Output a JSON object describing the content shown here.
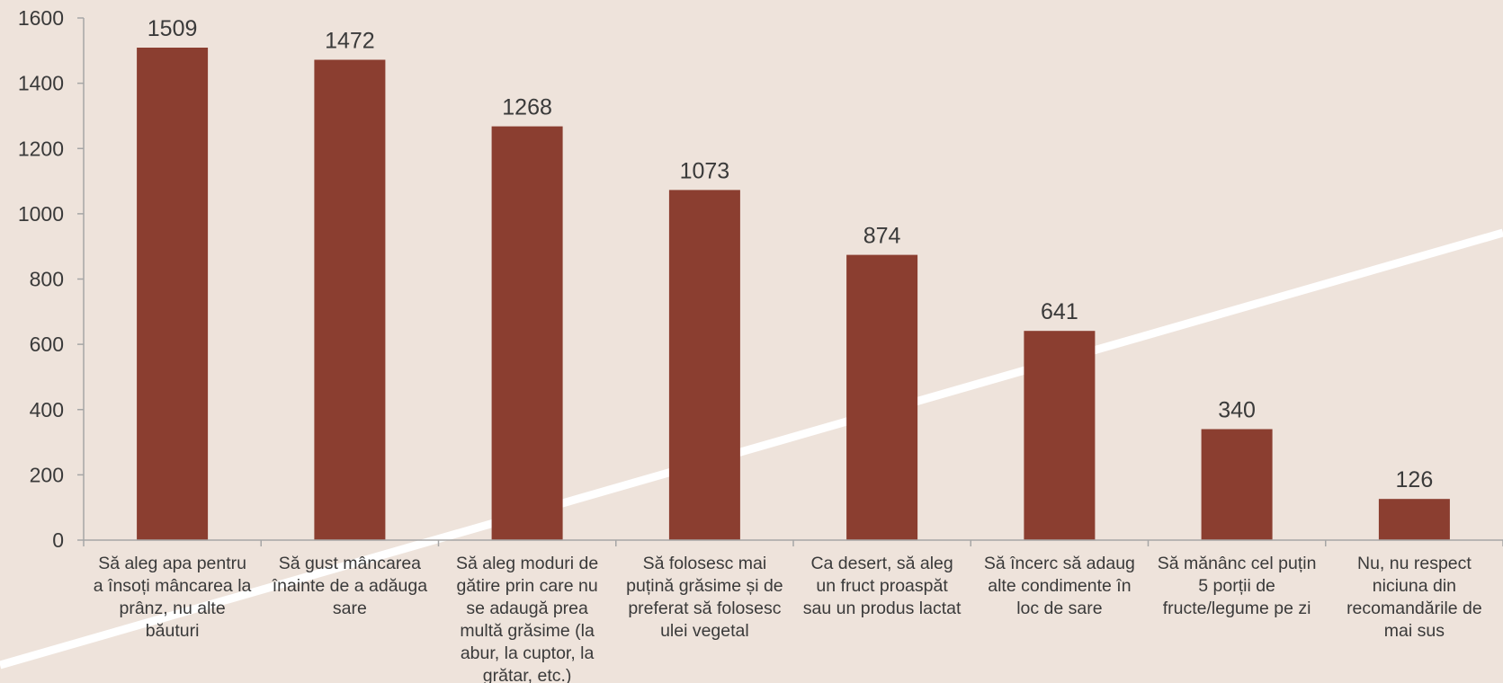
{
  "chart_data": {
    "type": "bar",
    "categories": [
      [
        "Să aleg apa pentru",
        "a însoți mâncarea la",
        "prânz, nu alte",
        "băuturi"
      ],
      [
        "Să gust mâncarea",
        "înainte de a adăuga",
        "sare"
      ],
      [
        "Să aleg moduri de",
        "gătire prin care nu",
        "se adaugă prea",
        "multă grăsime (la",
        "abur, la cuptor, la",
        "grătar, etc.)"
      ],
      [
        "Să folosesc mai",
        "puțină grăsime și de",
        "preferat să folosesc",
        "ulei vegetal"
      ],
      [
        "Ca desert, să aleg",
        "un fruct proaspăt",
        "sau un produs lactat"
      ],
      [
        "Să încerc să adaug",
        "alte condimente în",
        "loc de sare"
      ],
      [
        "Să mănânc cel puțin",
        "5 porții de",
        "fructe/legume pe zi"
      ],
      [
        "Nu, nu respect",
        "niciuna din",
        "recomandările de",
        "mai sus"
      ]
    ],
    "values": [
      1509,
      1472,
      1268,
      1073,
      874,
      641,
      340,
      126
    ],
    "value_labels": [
      "1509",
      "1472",
      "1268",
      "1073",
      "874",
      "641",
      "340",
      "126"
    ],
    "yticks": [
      "0",
      "200",
      "400",
      "600",
      "800",
      "1000",
      "1200",
      "1400",
      "1600"
    ],
    "ylim": [
      0,
      1600
    ],
    "grid": false,
    "legend": "none",
    "title": "",
    "xlabel": "",
    "ylabel": ""
  },
  "colors": {
    "background": "#EEE3DB",
    "bar": "#8B3E30",
    "axis": "#A6A6A6",
    "text": "#3A3A3A",
    "decor_stripe": "#FFFFFF"
  }
}
